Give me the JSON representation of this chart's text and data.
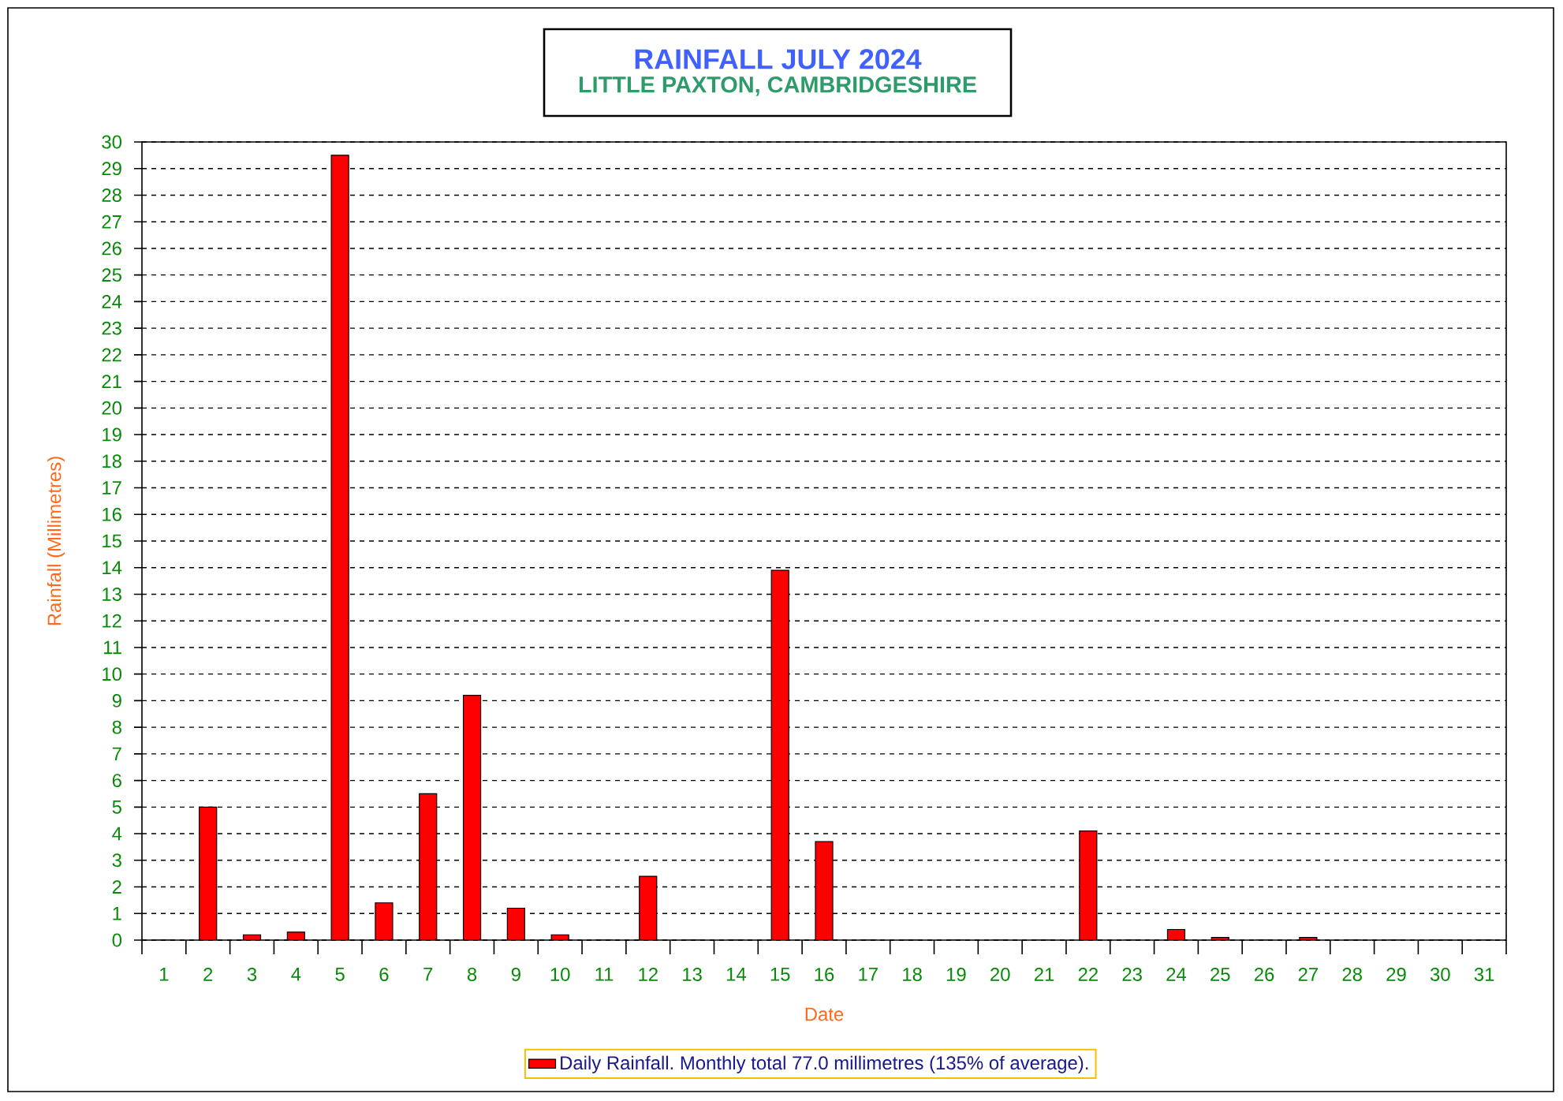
{
  "chart_data": {
    "type": "bar",
    "title": "RAINFALL JULY 2024",
    "subtitle": "LITTLE PAXTON, CAMBRIDGESHIRE",
    "xlabel": "Date",
    "ylabel": "Rainfall (Millimetres)",
    "categories": [
      "1",
      "2",
      "3",
      "4",
      "5",
      "6",
      "7",
      "8",
      "9",
      "10",
      "11",
      "12",
      "13",
      "14",
      "15",
      "16",
      "17",
      "18",
      "19",
      "20",
      "21",
      "22",
      "23",
      "24",
      "25",
      "26",
      "27",
      "28",
      "29",
      "30",
      "31"
    ],
    "series": [
      {
        "name": "Daily Rainfall. Monthly total 77.0 millimetres (135% of average).",
        "color": "#ff0000",
        "values": [
          0,
          5.0,
          0.2,
          0.3,
          29.5,
          1.4,
          5.5,
          9.2,
          1.2,
          0.2,
          0,
          2.4,
          0,
          0,
          13.9,
          3.7,
          0,
          0,
          0,
          0,
          0,
          4.1,
          0,
          0.4,
          0.1,
          0,
          0.1,
          0,
          0,
          0,
          0
        ]
      }
    ],
    "ylim": [
      0,
      30
    ],
    "yticks": [
      0,
      1,
      2,
      3,
      4,
      5,
      6,
      7,
      8,
      9,
      10,
      11,
      12,
      13,
      14,
      15,
      16,
      17,
      18,
      19,
      20,
      21,
      22,
      23,
      24,
      25,
      26,
      27,
      28,
      29,
      30
    ],
    "grid": "y",
    "legend": "bottom"
  }
}
